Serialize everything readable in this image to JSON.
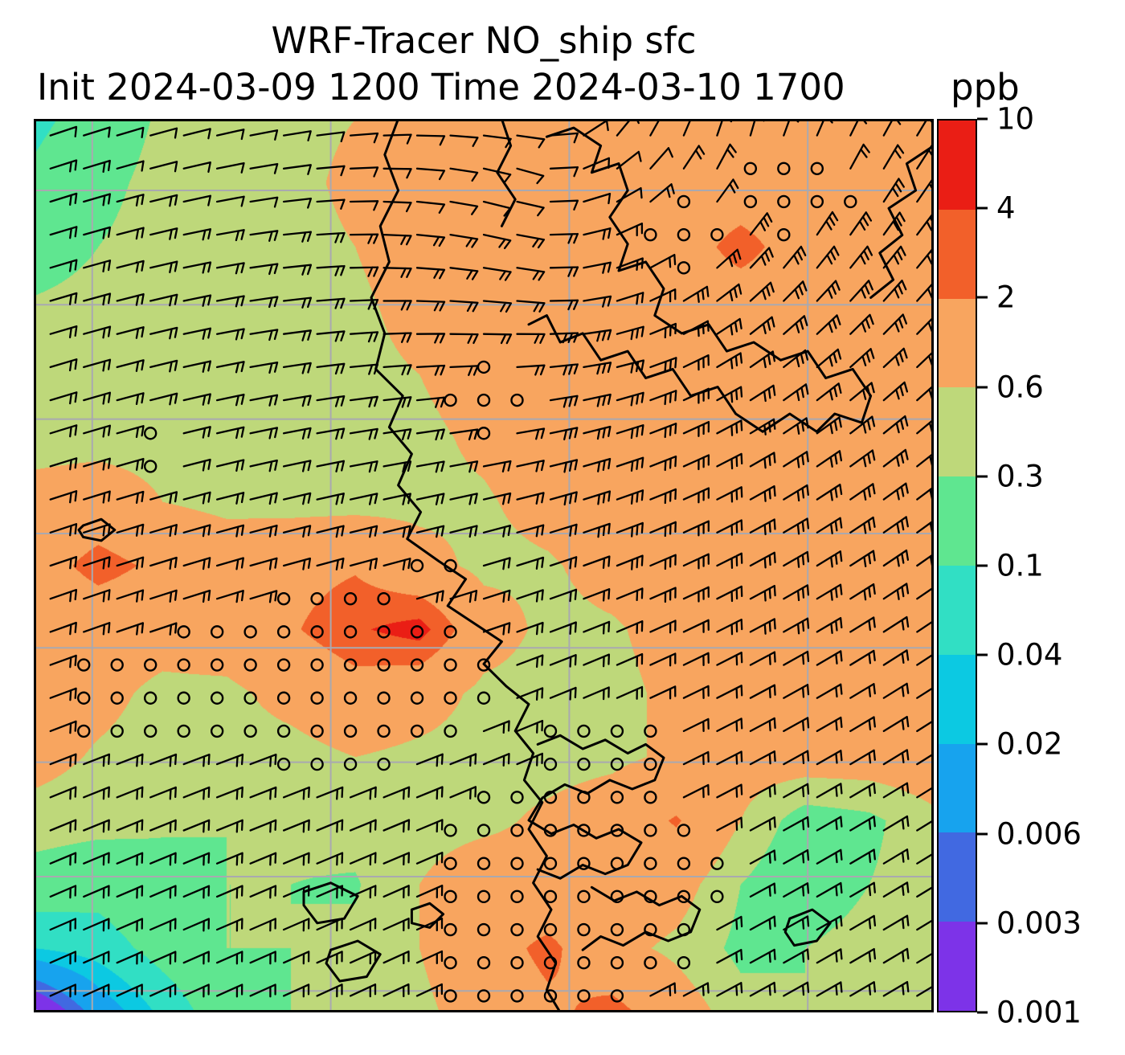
{
  "figure": {
    "title": "WRF-Tracer NO_ship sfc",
    "subtitle": "Init 2024-03-09 1200 Time 2024-03-10 1700",
    "units_label": "ppb"
  },
  "chart_data": {
    "type": "heatmap",
    "title": "WRF-Tracer NO_ship sfc",
    "variable": "NO_ship",
    "level": "sfc",
    "init_time": "2024-03-09 1200",
    "valid_time": "2024-03-10 1700",
    "units": "ppb",
    "levels": [
      0.001,
      0.003,
      0.006,
      0.02,
      0.04,
      0.1,
      0.3,
      0.6,
      2,
      4,
      10
    ],
    "colors": [
      "#7d33e8",
      "#4169e1",
      "#17a3ee",
      "#0cc9e2",
      "#31dfc4",
      "#5fe690",
      "#bed87a",
      "#f8a55f",
      "#f2602a",
      "#ea1e15"
    ],
    "colorbar_tick_labels": [
      "10",
      "4",
      "2",
      "0.6",
      "0.3",
      "0.1",
      "0.04",
      "0.02",
      "0.006",
      "0.003",
      "0.001"
    ],
    "grid": {
      "cols": 15,
      "rows": 15,
      "values": [
        [
          0.08,
          0.15,
          0.35,
          0.45,
          0.5,
          0.6,
          1.0,
          1.2,
          1.2,
          1.2,
          1.2,
          1.2,
          1.2,
          1.2,
          1.2
        ],
        [
          0.12,
          0.22,
          0.42,
          0.45,
          0.5,
          0.7,
          1.1,
          1.2,
          1.2,
          1.2,
          1.2,
          1.2,
          1.2,
          1.2,
          1.2
        ],
        [
          0.18,
          0.3,
          0.45,
          0.45,
          0.48,
          0.6,
          1.0,
          1.2,
          1.2,
          1.2,
          1.3,
          2.6,
          1.3,
          1.2,
          1.2
        ],
        [
          0.35,
          0.42,
          0.45,
          0.45,
          0.45,
          0.5,
          0.8,
          1.1,
          1.2,
          1.2,
          1.2,
          1.2,
          1.2,
          1.2,
          1.2
        ],
        [
          0.45,
          0.45,
          0.45,
          0.45,
          0.45,
          0.48,
          0.6,
          0.9,
          1.1,
          1.2,
          1.2,
          1.2,
          1.2,
          1.2,
          1.2
        ],
        [
          0.45,
          0.45,
          0.45,
          0.45,
          0.45,
          0.45,
          0.5,
          0.7,
          1.0,
          1.2,
          1.2,
          1.2,
          1.2,
          1.2,
          1.2
        ],
        [
          0.8,
          1.0,
          0.6,
          0.48,
          0.45,
          0.45,
          0.5,
          0.55,
          0.8,
          1.1,
          1.2,
          1.2,
          1.2,
          1.2,
          1.2
        ],
        [
          1.2,
          2.8,
          1.6,
          1.1,
          1.4,
          1.8,
          0.8,
          0.5,
          0.55,
          0.8,
          1.1,
          1.2,
          1.2,
          1.2,
          1.2
        ],
        [
          0.8,
          0.95,
          0.85,
          1.0,
          1.8,
          3.6,
          5.5,
          0.9,
          0.5,
          0.55,
          0.8,
          1.1,
          1.2,
          1.2,
          1.2
        ],
        [
          0.9,
          0.75,
          0.5,
          0.5,
          0.8,
          1.3,
          0.9,
          0.5,
          0.45,
          0.5,
          0.7,
          1.0,
          1.2,
          1.2,
          1.2
        ],
        [
          0.8,
          0.55,
          0.45,
          0.45,
          0.45,
          0.6,
          0.5,
          0.45,
          0.45,
          0.5,
          0.7,
          0.9,
          1.0,
          1.0,
          1.1
        ],
        [
          0.45,
          0.4,
          0.32,
          0.3,
          0.35,
          0.4,
          0.45,
          0.5,
          0.7,
          1.0,
          2.2,
          0.6,
          0.2,
          0.25,
          0.5
        ],
        [
          0.2,
          0.15,
          0.25,
          0.3,
          0.3,
          0.28,
          0.6,
          1.0,
          0.8,
          1.2,
          0.9,
          0.3,
          0.15,
          0.3,
          0.45
        ],
        [
          0.04,
          0.06,
          0.15,
          0.3,
          0.3,
          0.35,
          0.6,
          1.2,
          2.6,
          0.8,
          0.5,
          0.25,
          0.3,
          0.45,
          0.45
        ],
        [
          0.0008,
          0.01,
          0.05,
          0.2,
          0.3,
          0.35,
          0.5,
          0.9,
          1.6,
          2.8,
          1.0,
          0.4,
          0.3,
          0.45,
          0.45
        ]
      ]
    },
    "gridlines": {
      "x": [
        0.065,
        0.33,
        0.595,
        0.86
      ],
      "y": [
        0.08,
        0.208,
        0.336,
        0.464,
        0.592,
        0.72,
        0.848,
        0.976
      ],
      "color": "#a9a9b0"
    },
    "coastlines": [
      [
        [
          0.405,
          0.0
        ],
        [
          0.39,
          0.04
        ],
        [
          0.405,
          0.08
        ],
        [
          0.385,
          0.12
        ],
        [
          0.395,
          0.16
        ],
        [
          0.375,
          0.2
        ],
        [
          0.39,
          0.24
        ],
        [
          0.38,
          0.28
        ],
        [
          0.41,
          0.31
        ],
        [
          0.395,
          0.345
        ],
        [
          0.42,
          0.375
        ],
        [
          0.405,
          0.41
        ],
        [
          0.43,
          0.44
        ],
        [
          0.415,
          0.47
        ],
        [
          0.45,
          0.495
        ],
        [
          0.48,
          0.515
        ],
        [
          0.46,
          0.545
        ],
        [
          0.49,
          0.565
        ],
        [
          0.52,
          0.585
        ],
        [
          0.5,
          0.61
        ],
        [
          0.525,
          0.635
        ],
        [
          0.55,
          0.655
        ],
        [
          0.535,
          0.685
        ],
        [
          0.555,
          0.71
        ],
        [
          0.545,
          0.74
        ],
        [
          0.565,
          0.765
        ],
        [
          0.55,
          0.795
        ],
        [
          0.57,
          0.825
        ],
        [
          0.555,
          0.855
        ],
        [
          0.575,
          0.885
        ],
        [
          0.56,
          0.915
        ],
        [
          0.58,
          0.945
        ],
        [
          0.57,
          0.975
        ],
        [
          0.585,
          1.0
        ]
      ],
      [
        [
          0.52,
          0.0
        ],
        [
          0.53,
          0.03
        ],
        [
          0.515,
          0.06
        ],
        [
          0.535,
          0.09
        ],
        [
          0.52,
          0.12
        ]
      ],
      [
        [
          0.57,
          0.02
        ],
        [
          0.6,
          0.01
        ],
        [
          0.63,
          0.03
        ],
        [
          0.62,
          0.06
        ],
        [
          0.65,
          0.05
        ],
        [
          0.66,
          0.08
        ],
        [
          0.64,
          0.11
        ],
        [
          0.66,
          0.14
        ],
        [
          0.65,
          0.17
        ],
        [
          0.68,
          0.16
        ],
        [
          0.7,
          0.19
        ],
        [
          0.69,
          0.22
        ],
        [
          0.72,
          0.24
        ],
        [
          0.75,
          0.23
        ],
        [
          0.77,
          0.26
        ],
        [
          0.8,
          0.25
        ],
        [
          0.83,
          0.27
        ],
        [
          0.86,
          0.26
        ],
        [
          0.88,
          0.29
        ],
        [
          0.91,
          0.28
        ],
        [
          0.93,
          0.31
        ],
        [
          0.92,
          0.34
        ],
        [
          0.89,
          0.33
        ],
        [
          0.87,
          0.35
        ],
        [
          0.84,
          0.33
        ],
        [
          0.81,
          0.35
        ],
        [
          0.78,
          0.33
        ],
        [
          0.76,
          0.3
        ],
        [
          0.73,
          0.31
        ],
        [
          0.71,
          0.28
        ],
        [
          0.68,
          0.29
        ],
        [
          0.66,
          0.26
        ],
        [
          0.63,
          0.27
        ],
        [
          0.61,
          0.24
        ],
        [
          0.585,
          0.25
        ],
        [
          0.57,
          0.22
        ],
        [
          0.55,
          0.23
        ]
      ],
      [
        [
          1.0,
          0.03
        ],
        [
          0.97,
          0.05
        ],
        [
          0.98,
          0.08
        ],
        [
          0.95,
          0.1
        ],
        [
          0.965,
          0.13
        ],
        [
          0.94,
          0.15
        ],
        [
          0.955,
          0.18
        ],
        [
          0.93,
          0.2
        ]
      ],
      [
        [
          0.56,
          0.7
        ],
        [
          0.585,
          0.69
        ],
        [
          0.61,
          0.705
        ],
        [
          0.635,
          0.695
        ],
        [
          0.66,
          0.71
        ],
        [
          0.68,
          0.7
        ],
        [
          0.7,
          0.715
        ],
        [
          0.69,
          0.74
        ],
        [
          0.665,
          0.75
        ],
        [
          0.64,
          0.74
        ],
        [
          0.615,
          0.755
        ],
        [
          0.59,
          0.745
        ],
        [
          0.565,
          0.76
        ],
        [
          0.55,
          0.785
        ],
        [
          0.575,
          0.8
        ],
        [
          0.6,
          0.79
        ],
        [
          0.625,
          0.805
        ],
        [
          0.65,
          0.795
        ],
        [
          0.675,
          0.81
        ],
        [
          0.66,
          0.835
        ],
        [
          0.635,
          0.845
        ],
        [
          0.61,
          0.835
        ],
        [
          0.585,
          0.85
        ],
        [
          0.56,
          0.84
        ]
      ],
      [
        [
          0.3,
          0.865
        ],
        [
          0.33,
          0.855
        ],
        [
          0.36,
          0.87
        ],
        [
          0.345,
          0.895
        ],
        [
          0.315,
          0.9
        ],
        [
          0.3,
          0.88
        ],
        [
          0.3,
          0.865
        ]
      ],
      [
        [
          0.33,
          0.93
        ],
        [
          0.36,
          0.92
        ],
        [
          0.385,
          0.935
        ],
        [
          0.37,
          0.96
        ],
        [
          0.34,
          0.965
        ],
        [
          0.325,
          0.945
        ],
        [
          0.33,
          0.93
        ]
      ],
      [
        [
          0.42,
          0.885
        ],
        [
          0.44,
          0.878
        ],
        [
          0.455,
          0.89
        ],
        [
          0.44,
          0.905
        ],
        [
          0.42,
          0.9
        ],
        [
          0.42,
          0.885
        ]
      ],
      [
        [
          0.055,
          0.455
        ],
        [
          0.075,
          0.448
        ],
        [
          0.09,
          0.46
        ],
        [
          0.075,
          0.472
        ],
        [
          0.055,
          0.468
        ],
        [
          0.05,
          0.46
        ],
        [
          0.055,
          0.455
        ]
      ],
      [
        [
          0.62,
          0.86
        ],
        [
          0.645,
          0.875
        ],
        [
          0.67,
          0.865
        ],
        [
          0.695,
          0.88
        ],
        [
          0.72,
          0.87
        ],
        [
          0.74,
          0.885
        ],
        [
          0.73,
          0.91
        ],
        [
          0.705,
          0.92
        ],
        [
          0.68,
          0.91
        ],
        [
          0.655,
          0.925
        ],
        [
          0.63,
          0.915
        ],
        [
          0.61,
          0.93
        ]
      ],
      [
        [
          0.84,
          0.895
        ],
        [
          0.865,
          0.885
        ],
        [
          0.885,
          0.9
        ],
        [
          0.87,
          0.92
        ],
        [
          0.845,
          0.925
        ],
        [
          0.835,
          0.91
        ],
        [
          0.84,
          0.895
        ]
      ]
    ],
    "wind_field": {
      "grid_n": 27,
      "vortex": {
        "cx": 0.68,
        "cy": 0.12,
        "strength": 0.075,
        "max": 1.8
      },
      "uniform": {
        "u": 0.3,
        "v": -0.2
      }
    },
    "calm_regions": [
      {
        "cx": 0.33,
        "cy": 0.63,
        "rx": 0.2,
        "ry": 0.1
      },
      {
        "cx": 0.6,
        "cy": 0.86,
        "rx": 0.17,
        "ry": 0.13
      },
      {
        "cx": 0.63,
        "cy": 0.72,
        "rx": 0.09,
        "ry": 0.07
      },
      {
        "cx": 0.09,
        "cy": 0.64,
        "rx": 0.07,
        "ry": 0.06
      },
      {
        "cx": 0.5,
        "cy": 0.31,
        "rx": 0.05,
        "ry": 0.045
      },
      {
        "cx": 0.84,
        "cy": 0.08,
        "rx": 0.07,
        "ry": 0.05
      },
      {
        "cx": 0.73,
        "cy": 0.13,
        "rx": 0.045,
        "ry": 0.04
      },
      {
        "cx": 0.13,
        "cy": 0.36,
        "rx": 0.035,
        "ry": 0.03
      },
      {
        "cx": 0.52,
        "cy": 0.95,
        "rx": 0.08,
        "ry": 0.05
      },
      {
        "cx": 0.44,
        "cy": 0.5,
        "rx": 0.04,
        "ry": 0.035
      }
    ]
  }
}
